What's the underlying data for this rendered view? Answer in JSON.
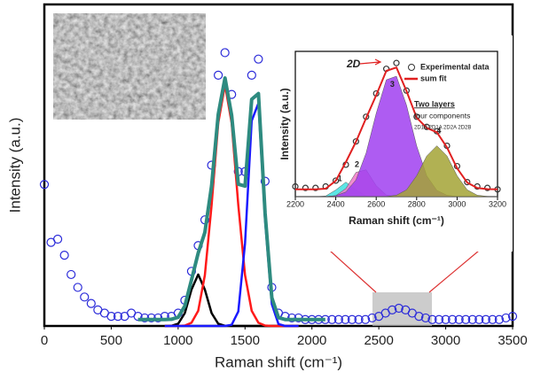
{
  "chart_data": [
    {
      "type": "line",
      "xlabel": "Raman shift (cm⁻¹)",
      "ylabel": "Intensity (a.u.)",
      "xlim": [
        0,
        3500
      ],
      "xticks": [
        0,
        500,
        1000,
        1500,
        2000,
        2500,
        3000,
        3500
      ],
      "ylim": [
        0,
        100
      ],
      "series": [
        {
          "color": "#2b2bd9",
          "marker": "circle",
          "x": [
            0,
            50,
            100,
            150,
            200,
            250,
            300,
            350,
            400,
            450,
            500,
            550,
            600,
            650,
            700,
            750,
            800,
            850,
            900,
            950,
            1000,
            1050,
            1100,
            1150,
            1200,
            1250,
            1300,
            1350,
            1400,
            1450,
            1500,
            1550,
            1600,
            1650,
            1700,
            1750,
            1800,
            1850,
            1900,
            1950,
            2000,
            2050,
            2100,
            2150,
            2200,
            2250,
            2300,
            2350,
            2400,
            2450,
            2500,
            2550,
            2600,
            2650,
            2700,
            2750,
            2800,
            2850,
            2900,
            2950,
            3000,
            3050,
            3100,
            3150,
            3200,
            3250,
            3300,
            3350,
            3400,
            3450,
            3500
          ],
          "values": [
            44,
            26,
            27,
            22,
            16,
            12,
            9,
            7,
            5,
            4,
            3,
            3,
            3,
            4,
            3,
            2.5,
            2.5,
            2.5,
            3,
            3,
            4,
            8,
            17,
            25,
            33,
            50,
            78,
            85,
            72,
            48,
            48,
            78,
            83,
            45,
            12,
            4,
            3,
            2.5,
            2.5,
            2,
            2,
            2,
            2,
            2,
            2,
            2,
            2,
            2,
            2,
            2.5,
            3,
            4,
            5,
            5.5,
            5,
            4,
            3,
            2.5,
            2,
            2,
            2,
            2,
            2,
            2,
            2,
            2,
            2,
            2,
            2,
            2.5,
            3
          ]
        },
        {
          "color": "#000000",
          "x": [
            900,
            950,
            1000,
            1050,
            1100,
            1150,
            1200,
            1250,
            1300,
            1350,
            1400,
            1450,
            1500,
            1550,
            1600,
            1650,
            1700,
            1750,
            1800,
            1850,
            1900
          ],
          "values": [
            0,
            0.06,
            0.7,
            4,
            11.3,
            16,
            11.3,
            4,
            0.7,
            0.06,
            0,
            0,
            0,
            0,
            0,
            0,
            0,
            0,
            0,
            0,
            0
          ]
        },
        {
          "color": "#ff1a1a",
          "x": [
            900,
            950,
            1000,
            1050,
            1100,
            1150,
            1200,
            1250,
            1300,
            1350,
            1400,
            1450,
            1500,
            1550,
            1600,
            1650,
            1700,
            1750,
            1800,
            1850,
            1900
          ],
          "values": [
            0,
            0,
            0,
            0.15,
            1,
            4.7,
            15.8,
            37.6,
            63.1,
            75,
            63.1,
            37.6,
            15.8,
            4.7,
            1,
            0.15,
            0,
            0,
            0,
            0,
            0
          ]
        },
        {
          "color": "#1a1aff",
          "x": [
            900,
            950,
            1000,
            1050,
            1100,
            1150,
            1200,
            1250,
            1300,
            1350,
            1400,
            1450,
            1500,
            1550,
            1600,
            1650,
            1700,
            1750,
            1800,
            1850,
            1900
          ],
          "values": [
            0,
            0,
            0,
            0,
            0,
            0,
            0,
            0,
            0,
            0,
            0.35,
            4.5,
            25.7,
            63.8,
            69.3,
            32.9,
            6.8,
            0.6,
            0,
            0,
            0
          ]
        },
        {
          "color": "#2e8b80",
          "width": 4,
          "x": [
            700,
            750,
            800,
            850,
            900,
            950,
            1000,
            1050,
            1100,
            1150,
            1200,
            1250,
            1300,
            1350,
            1400,
            1450,
            1500,
            1550,
            1600,
            1650,
            1700,
            1750,
            1800,
            1850,
            1900,
            1950,
            2000,
            2050,
            2100
          ],
          "values": [
            2,
            2,
            2,
            2,
            2,
            2.1,
            2.7,
            6.2,
            14.3,
            22.7,
            29.1,
            43.6,
            65.8,
            77.1,
            65.5,
            44.1,
            43.5,
            70.5,
            72.3,
            35.1,
            8.8,
            2.6,
            2,
            2,
            2,
            2,
            2,
            2,
            2
          ]
        }
      ]
    },
    {
      "type": "line",
      "xlabel": "Raman shift (cm⁻¹)",
      "ylabel": "Intensity (a.u.)",
      "xlim": [
        2200,
        3200
      ],
      "xticks": [
        2200,
        2400,
        2600,
        2800,
        3000,
        3200
      ],
      "ylim": [
        0,
        100
      ],
      "annotations": [
        "2D",
        "Two layers",
        "four components",
        "2D1B 2D1A 2D2A 2D2B"
      ],
      "series": [
        {
          "name": "1",
          "color": "#40e0e0",
          "fill": true,
          "x": [
            2200,
            2250,
            2300,
            2350,
            2400,
            2450,
            2500,
            2550,
            2600,
            2650,
            2700,
            2750,
            2800,
            2850,
            2900,
            2950,
            3000,
            3050,
            3100,
            3150,
            3200
          ],
          "values": [
            0,
            0,
            0,
            0.44,
            4.6,
            10,
            4.6,
            0.44,
            0,
            0,
            0,
            0,
            0,
            0,
            0,
            0,
            0,
            0,
            0,
            0,
            0
          ]
        },
        {
          "name": "2",
          "color": "#f078c8",
          "fill": true,
          "x": [
            2200,
            2250,
            2300,
            2350,
            2400,
            2450,
            2500,
            2550,
            2600,
            2650,
            2700,
            2750,
            2800,
            2850,
            2900,
            2950,
            3000,
            3050,
            3100,
            3150,
            3200
          ],
          "values": [
            0,
            0,
            0,
            0,
            0.68,
            5.6,
            16.7,
            18.5,
            7.5,
            1.1,
            0.06,
            0,
            0,
            0,
            0,
            0,
            0,
            0,
            0,
            0,
            0
          ]
        },
        {
          "name": "3",
          "color": "#a040f0",
          "fill": true,
          "x": [
            2200,
            2250,
            2300,
            2350,
            2400,
            2450,
            2500,
            2550,
            2600,
            2650,
            2700,
            2750,
            2800,
            2850,
            2900,
            2950,
            3000,
            3050,
            3100,
            3150,
            3200
          ],
          "values": [
            0,
            0,
            0,
            0.1,
            0.67,
            3.2,
            11.5,
            30,
            57.3,
            80.4,
            82.9,
            62.9,
            35,
            14.3,
            4.3,
            0.95,
            0.15,
            0,
            0,
            0,
            0
          ]
        },
        {
          "name": "4",
          "color": "#a3a335",
          "fill": true,
          "x": [
            2200,
            2250,
            2300,
            2350,
            2400,
            2450,
            2500,
            2550,
            2600,
            2650,
            2700,
            2750,
            2800,
            2850,
            2900,
            2950,
            3000,
            3050,
            3100,
            3150,
            3200
          ],
          "values": [
            0,
            0,
            0,
            0,
            0,
            0,
            0,
            0,
            0,
            0.13,
            1,
            4.7,
            14.4,
            28,
            35,
            28,
            14.4,
            4.7,
            1,
            0.2,
            0
          ]
        },
        {
          "name": "Experimental data",
          "color": "#333333",
          "marker": "circle",
          "x": [
            2200,
            2250,
            2300,
            2350,
            2400,
            2450,
            2500,
            2550,
            2600,
            2650,
            2700,
            2750,
            2800,
            2850,
            2900,
            2950,
            3000,
            3050,
            3100,
            3150,
            3200
          ],
          "values": [
            7,
            6,
            6,
            7,
            11,
            22,
            38,
            55,
            71,
            88,
            92,
            73,
            55,
            48,
            45,
            35,
            21,
            10,
            7,
            6,
            5
          ]
        },
        {
          "name": "sum fit",
          "color": "#e02020",
          "width": 2,
          "x": [
            2200,
            2250,
            2300,
            2350,
            2400,
            2450,
            2500,
            2550,
            2600,
            2650,
            2700,
            2750,
            2800,
            2850,
            2900,
            2950,
            3000,
            3050,
            3100,
            3150,
            3200
          ],
          "values": [
            5,
            5,
            5,
            5.5,
            10.9,
            23.8,
            37.8,
            54,
            69.8,
            86.6,
            88.9,
            72.6,
            54.4,
            47.3,
            44.3,
            33.9,
            19.6,
            9.7,
            6,
            5.2,
            5
          ]
        }
      ]
    }
  ]
}
